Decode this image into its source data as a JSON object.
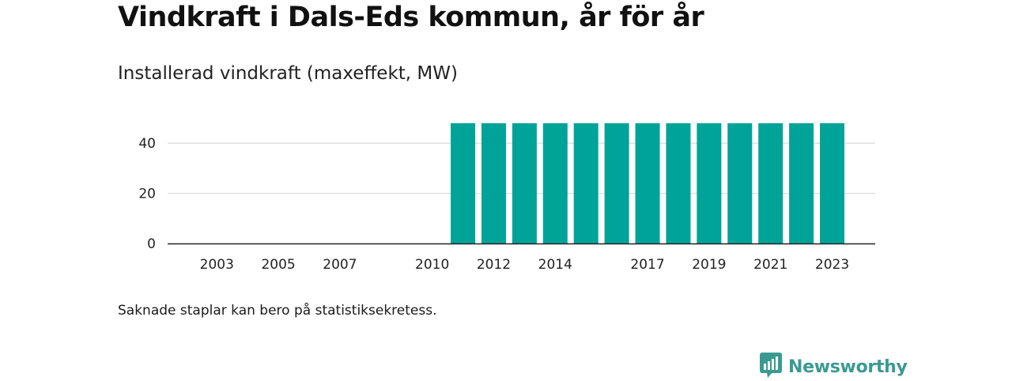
{
  "title": "Vindkraft i Dals-Eds kommun, år för år",
  "subtitle": "Installerad vindkraft (maxeffekt, MW)",
  "note": "Saknade staplar kan bero på statistiksekretess.",
  "brand": {
    "name": "Newsworthy",
    "icon": "newsworthy-logo-icon",
    "color": "#3a9a92"
  },
  "colors": {
    "bar": "#00a398",
    "grid": "#dddddd",
    "axis": "#222222"
  },
  "chart_data": {
    "type": "bar",
    "title": "Vindkraft i Dals-Eds kommun, år för år",
    "subtitle": "Installerad vindkraft (maxeffekt, MW)",
    "xlabel": "",
    "ylabel": "",
    "categories": [
      "2011",
      "2012",
      "2013",
      "2014",
      "2015",
      "2016",
      "2017",
      "2018",
      "2019",
      "2020",
      "2021",
      "2022",
      "2023"
    ],
    "values": [
      48,
      48,
      48,
      48,
      48,
      48,
      48,
      48,
      48,
      48,
      48,
      48,
      48
    ],
    "x_range": [
      2001.4,
      2024.4
    ],
    "x_ticks": [
      "2003",
      "2005",
      "2007",
      "2010",
      "2012",
      "2014",
      "2017",
      "2019",
      "2021",
      "2023"
    ],
    "y_ticks": [
      0,
      20,
      40
    ],
    "ylim": [
      0,
      50
    ],
    "grid": true,
    "legend": "none"
  }
}
